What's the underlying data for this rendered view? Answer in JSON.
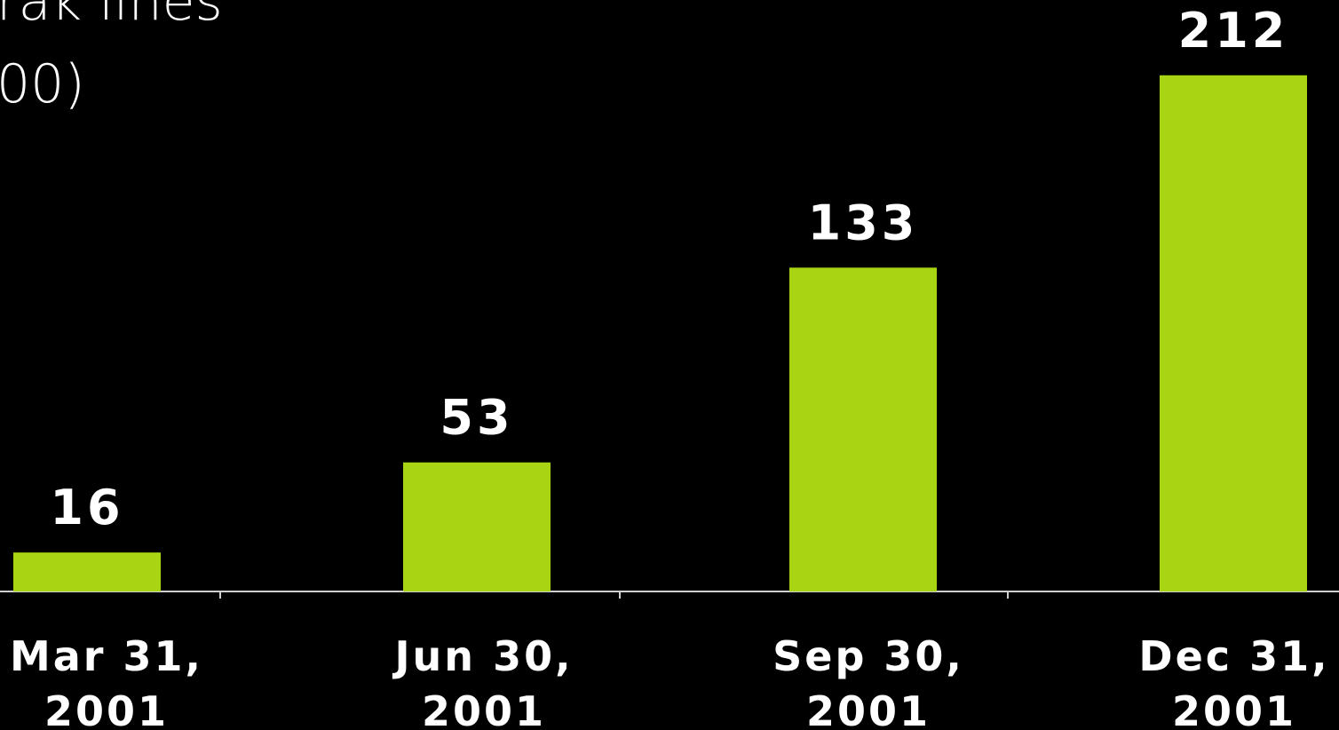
{
  "chart_data": {
    "type": "bar",
    "title": [
      "rak lines",
      "00)"
    ],
    "categories": [
      [
        "Mar 31,",
        "2001"
      ],
      [
        "Jun 30,",
        "2001"
      ],
      [
        "Sep 30,",
        "2001"
      ],
      [
        "Dec 31,",
        "2001"
      ]
    ],
    "values": [
      16,
      53,
      133,
      212
    ],
    "color": "#a8d414",
    "ylim": [
      0,
      240
    ]
  }
}
